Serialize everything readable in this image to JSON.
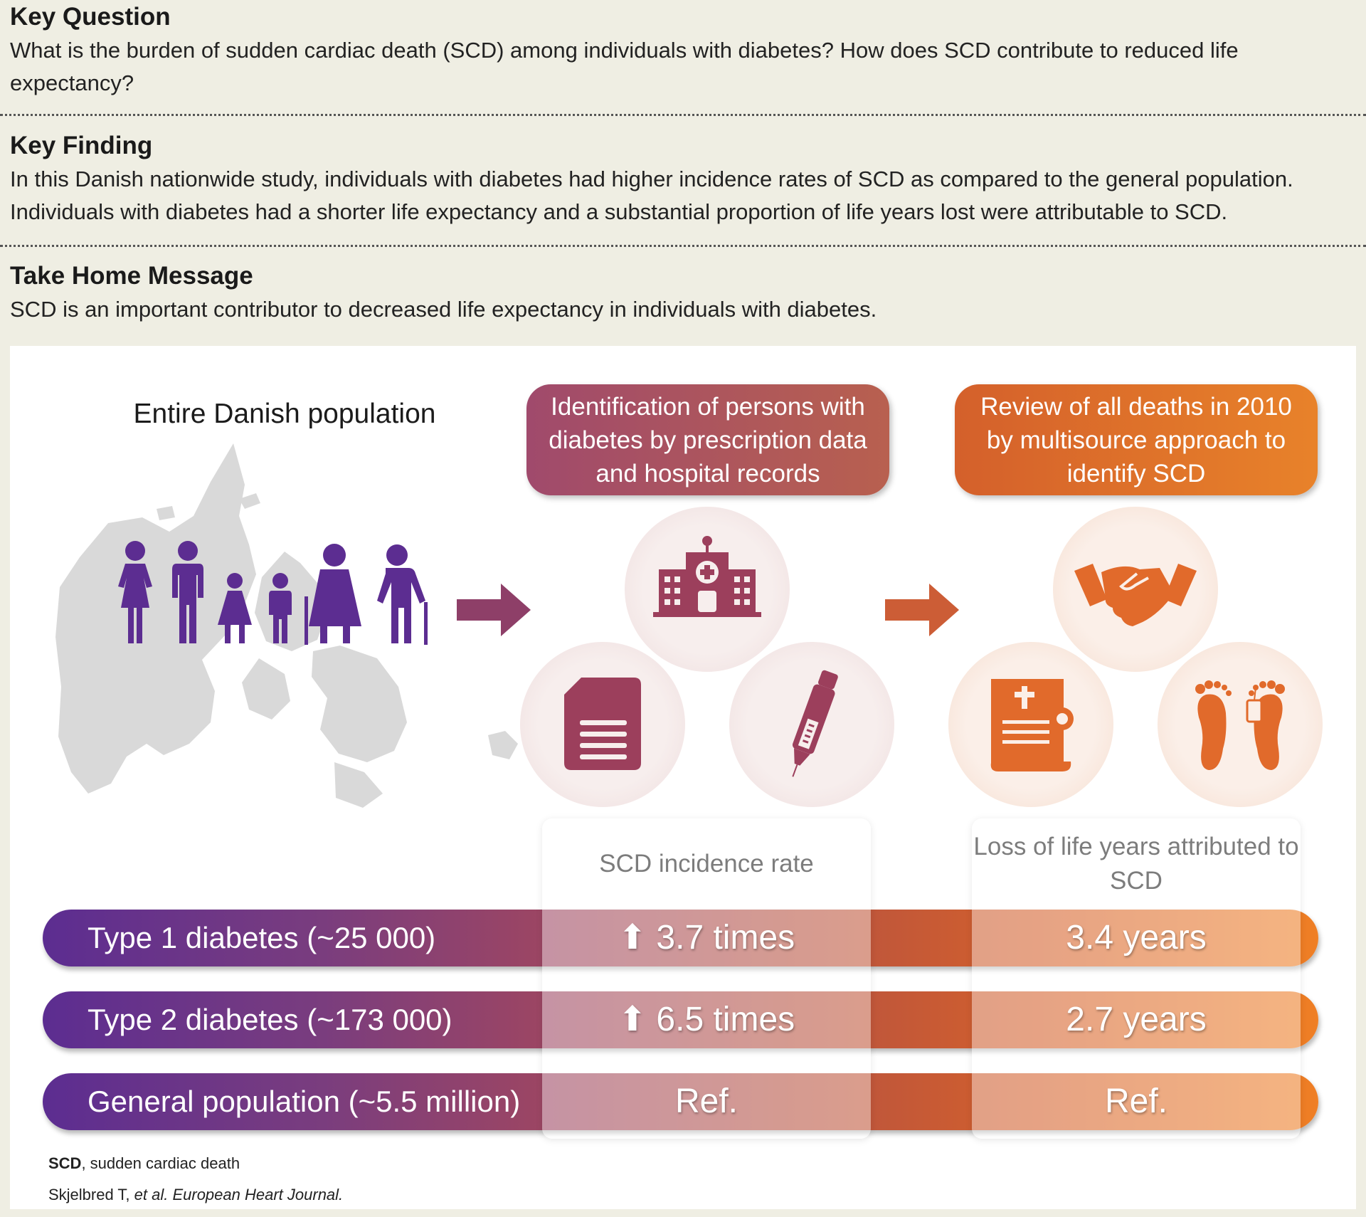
{
  "key_question": {
    "heading": "Key Question",
    "text": "What is the burden of sudden cardiac death (SCD) among individuals with diabetes? How does SCD contribute to reduced life expectancy?"
  },
  "key_finding": {
    "heading": "Key Finding",
    "line1": "In this Danish nationwide study, individuals with diabetes had higher incidence rates of SCD as compared to the general population.",
    "line2": "Individuals with diabetes had a shorter life expectancy and a substantial proportion of life years lost were attributable to SCD."
  },
  "take_home": {
    "heading": "Take Home Message",
    "text": "SCD is an important contributor to decreased life expectancy in individuals with diabetes."
  },
  "diagram": {
    "population_title": "Entire Danish population",
    "box_identification": "Identification of persons with diabetes by prescription data and hospital records",
    "box_review": "Review of all deaths in 2010 by multisource approach to identify SCD",
    "col_incidence": "SCD incidence rate",
    "col_life_years": "Loss of life years attributed to SCD",
    "icons": [
      "people-icon",
      "hospital-icon",
      "document-icon",
      "insulin-pen-icon",
      "handshake-icon",
      "death-certificate-icon",
      "toe-tag-feet-icon",
      "arrow-right-icon"
    ],
    "colors": {
      "purple": "#5c2d91",
      "rose": "#a04a6c",
      "orange": "#e8822a",
      "map_gray": "#d9d9d9"
    }
  },
  "rows": [
    {
      "label": "Type 1 diabetes (~25 000)",
      "arrow": "⬆",
      "incidence": "3.7 times",
      "life_years": "3.4 years"
    },
    {
      "label": "Type 2 diabetes (~173 000)",
      "arrow": "⬆",
      "incidence": "6.5 times",
      "life_years": "2.7 years"
    },
    {
      "label": "General population (~5.5 million)",
      "arrow": "",
      "incidence": "Ref.",
      "life_years": "Ref."
    }
  ],
  "footer": {
    "abbr_bold": "SCD",
    "abbr_rest": ", sudden cardiac death",
    "citation_author": "Skjelbred T, ",
    "citation_etal": "et al. European Heart Journal."
  }
}
